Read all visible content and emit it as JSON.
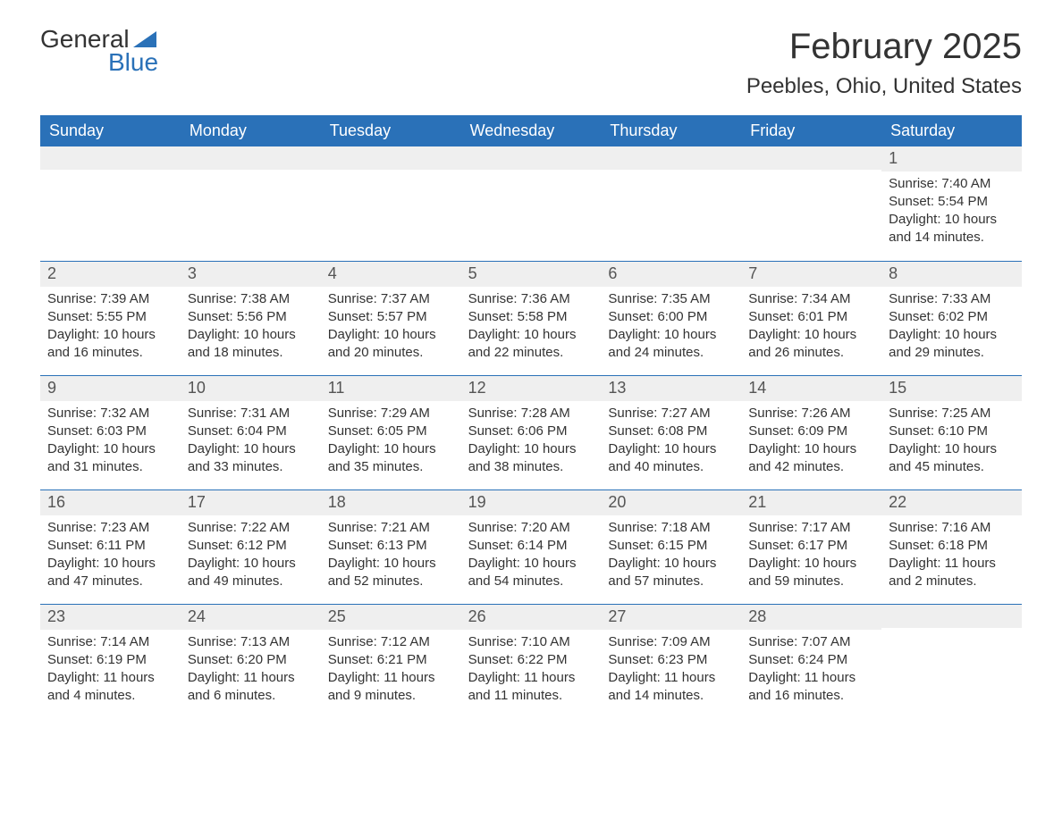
{
  "logo": {
    "word1": "General",
    "word2": "Blue"
  },
  "header": {
    "month_title": "February 2025",
    "location": "Peebles, Ohio, United States"
  },
  "colors": {
    "header_bg": "#2a71b8",
    "header_text": "#ffffff",
    "daynum_bg": "#efefef",
    "text": "#333333",
    "rule": "#2a71b8"
  },
  "days_of_week": [
    "Sunday",
    "Monday",
    "Tuesday",
    "Wednesday",
    "Thursday",
    "Friday",
    "Saturday"
  ],
  "weeks": [
    [
      null,
      null,
      null,
      null,
      null,
      null,
      {
        "n": "1",
        "sunrise": "Sunrise: 7:40 AM",
        "sunset": "Sunset: 5:54 PM",
        "daylight": "Daylight: 10 hours and 14 minutes."
      }
    ],
    [
      {
        "n": "2",
        "sunrise": "Sunrise: 7:39 AM",
        "sunset": "Sunset: 5:55 PM",
        "daylight": "Daylight: 10 hours and 16 minutes."
      },
      {
        "n": "3",
        "sunrise": "Sunrise: 7:38 AM",
        "sunset": "Sunset: 5:56 PM",
        "daylight": "Daylight: 10 hours and 18 minutes."
      },
      {
        "n": "4",
        "sunrise": "Sunrise: 7:37 AM",
        "sunset": "Sunset: 5:57 PM",
        "daylight": "Daylight: 10 hours and 20 minutes."
      },
      {
        "n": "5",
        "sunrise": "Sunrise: 7:36 AM",
        "sunset": "Sunset: 5:58 PM",
        "daylight": "Daylight: 10 hours and 22 minutes."
      },
      {
        "n": "6",
        "sunrise": "Sunrise: 7:35 AM",
        "sunset": "Sunset: 6:00 PM",
        "daylight": "Daylight: 10 hours and 24 minutes."
      },
      {
        "n": "7",
        "sunrise": "Sunrise: 7:34 AM",
        "sunset": "Sunset: 6:01 PM",
        "daylight": "Daylight: 10 hours and 26 minutes."
      },
      {
        "n": "8",
        "sunrise": "Sunrise: 7:33 AM",
        "sunset": "Sunset: 6:02 PM",
        "daylight": "Daylight: 10 hours and 29 minutes."
      }
    ],
    [
      {
        "n": "9",
        "sunrise": "Sunrise: 7:32 AM",
        "sunset": "Sunset: 6:03 PM",
        "daylight": "Daylight: 10 hours and 31 minutes."
      },
      {
        "n": "10",
        "sunrise": "Sunrise: 7:31 AM",
        "sunset": "Sunset: 6:04 PM",
        "daylight": "Daylight: 10 hours and 33 minutes."
      },
      {
        "n": "11",
        "sunrise": "Sunrise: 7:29 AM",
        "sunset": "Sunset: 6:05 PM",
        "daylight": "Daylight: 10 hours and 35 minutes."
      },
      {
        "n": "12",
        "sunrise": "Sunrise: 7:28 AM",
        "sunset": "Sunset: 6:06 PM",
        "daylight": "Daylight: 10 hours and 38 minutes."
      },
      {
        "n": "13",
        "sunrise": "Sunrise: 7:27 AM",
        "sunset": "Sunset: 6:08 PM",
        "daylight": "Daylight: 10 hours and 40 minutes."
      },
      {
        "n": "14",
        "sunrise": "Sunrise: 7:26 AM",
        "sunset": "Sunset: 6:09 PM",
        "daylight": "Daylight: 10 hours and 42 minutes."
      },
      {
        "n": "15",
        "sunrise": "Sunrise: 7:25 AM",
        "sunset": "Sunset: 6:10 PM",
        "daylight": "Daylight: 10 hours and 45 minutes."
      }
    ],
    [
      {
        "n": "16",
        "sunrise": "Sunrise: 7:23 AM",
        "sunset": "Sunset: 6:11 PM",
        "daylight": "Daylight: 10 hours and 47 minutes."
      },
      {
        "n": "17",
        "sunrise": "Sunrise: 7:22 AM",
        "sunset": "Sunset: 6:12 PM",
        "daylight": "Daylight: 10 hours and 49 minutes."
      },
      {
        "n": "18",
        "sunrise": "Sunrise: 7:21 AM",
        "sunset": "Sunset: 6:13 PM",
        "daylight": "Daylight: 10 hours and 52 minutes."
      },
      {
        "n": "19",
        "sunrise": "Sunrise: 7:20 AM",
        "sunset": "Sunset: 6:14 PM",
        "daylight": "Daylight: 10 hours and 54 minutes."
      },
      {
        "n": "20",
        "sunrise": "Sunrise: 7:18 AM",
        "sunset": "Sunset: 6:15 PM",
        "daylight": "Daylight: 10 hours and 57 minutes."
      },
      {
        "n": "21",
        "sunrise": "Sunrise: 7:17 AM",
        "sunset": "Sunset: 6:17 PM",
        "daylight": "Daylight: 10 hours and 59 minutes."
      },
      {
        "n": "22",
        "sunrise": "Sunrise: 7:16 AM",
        "sunset": "Sunset: 6:18 PM",
        "daylight": "Daylight: 11 hours and 2 minutes."
      }
    ],
    [
      {
        "n": "23",
        "sunrise": "Sunrise: 7:14 AM",
        "sunset": "Sunset: 6:19 PM",
        "daylight": "Daylight: 11 hours and 4 minutes."
      },
      {
        "n": "24",
        "sunrise": "Sunrise: 7:13 AM",
        "sunset": "Sunset: 6:20 PM",
        "daylight": "Daylight: 11 hours and 6 minutes."
      },
      {
        "n": "25",
        "sunrise": "Sunrise: 7:12 AM",
        "sunset": "Sunset: 6:21 PM",
        "daylight": "Daylight: 11 hours and 9 minutes."
      },
      {
        "n": "26",
        "sunrise": "Sunrise: 7:10 AM",
        "sunset": "Sunset: 6:22 PM",
        "daylight": "Daylight: 11 hours and 11 minutes."
      },
      {
        "n": "27",
        "sunrise": "Sunrise: 7:09 AM",
        "sunset": "Sunset: 6:23 PM",
        "daylight": "Daylight: 11 hours and 14 minutes."
      },
      {
        "n": "28",
        "sunrise": "Sunrise: 7:07 AM",
        "sunset": "Sunset: 6:24 PM",
        "daylight": "Daylight: 11 hours and 16 minutes."
      },
      null
    ]
  ]
}
